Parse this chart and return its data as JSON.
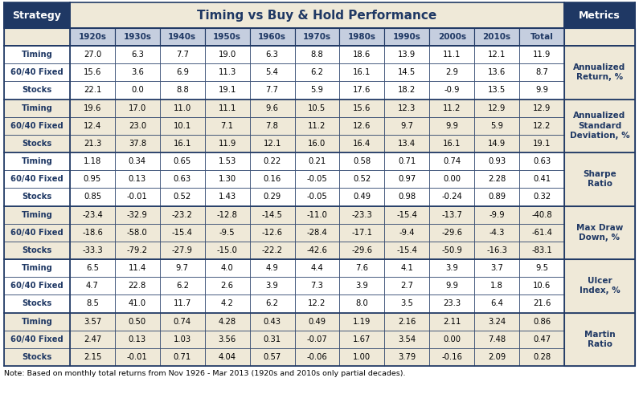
{
  "title": "Timing vs Buy & Hold Performance",
  "col_headers": [
    "1920s",
    "1930s",
    "1940s",
    "1950s",
    "1960s",
    "1970s",
    "1980s",
    "1990s",
    "2000s",
    "2010s",
    "Total"
  ],
  "row_groups": [
    {
      "metric": "Annualized\nReturn, %",
      "rows": [
        {
          "strategy": "Timing",
          "values": [
            "27.0",
            "6.3",
            "7.7",
            "19.0",
            "6.3",
            "8.8",
            "18.6",
            "13.9",
            "11.1",
            "12.1",
            "11.9"
          ]
        },
        {
          "strategy": "60/40 Fixed",
          "values": [
            "15.6",
            "3.6",
            "6.9",
            "11.3",
            "5.4",
            "6.2",
            "16.1",
            "14.5",
            "2.9",
            "13.6",
            "8.7"
          ]
        },
        {
          "strategy": "Stocks",
          "values": [
            "22.1",
            "0.0",
            "8.8",
            "19.1",
            "7.7",
            "5.9",
            "17.6",
            "18.2",
            "-0.9",
            "13.5",
            "9.9"
          ]
        }
      ]
    },
    {
      "metric": "Annualized\nStandard\nDeviation, %",
      "rows": [
        {
          "strategy": "Timing",
          "values": [
            "19.6",
            "17.0",
            "11.0",
            "11.1",
            "9.6",
            "10.5",
            "15.6",
            "12.3",
            "11.2",
            "12.9",
            "12.9"
          ]
        },
        {
          "strategy": "60/40 Fixed",
          "values": [
            "12.4",
            "23.0",
            "10.1",
            "7.1",
            "7.8",
            "11.2",
            "12.6",
            "9.7",
            "9.9",
            "5.9",
            "12.2"
          ]
        },
        {
          "strategy": "Stocks",
          "values": [
            "21.3",
            "37.8",
            "16.1",
            "11.9",
            "12.1",
            "16.0",
            "16.4",
            "13.4",
            "16.1",
            "14.9",
            "19.1"
          ]
        }
      ]
    },
    {
      "metric": "Sharpe\nRatio",
      "rows": [
        {
          "strategy": "Timing",
          "values": [
            "1.18",
            "0.34",
            "0.65",
            "1.53",
            "0.22",
            "0.21",
            "0.58",
            "0.71",
            "0.74",
            "0.93",
            "0.63"
          ]
        },
        {
          "strategy": "60/40 Fixed",
          "values": [
            "0.95",
            "0.13",
            "0.63",
            "1.30",
            "0.16",
            "-0.05",
            "0.52",
            "0.97",
            "0.00",
            "2.28",
            "0.41"
          ]
        },
        {
          "strategy": "Stocks",
          "values": [
            "0.85",
            "-0.01",
            "0.52",
            "1.43",
            "0.29",
            "-0.05",
            "0.49",
            "0.98",
            "-0.24",
            "0.89",
            "0.32"
          ]
        }
      ]
    },
    {
      "metric": "Max Draw\nDown, %",
      "rows": [
        {
          "strategy": "Timing",
          "values": [
            "-23.4",
            "-32.9",
            "-23.2",
            "-12.8",
            "-14.5",
            "-11.0",
            "-23.3",
            "-15.4",
            "-13.7",
            "-9.9",
            "-40.8"
          ]
        },
        {
          "strategy": "60/40 Fixed",
          "values": [
            "-18.6",
            "-58.0",
            "-15.4",
            "-9.5",
            "-12.6",
            "-28.4",
            "-17.1",
            "-9.4",
            "-29.6",
            "-4.3",
            "-61.4"
          ]
        },
        {
          "strategy": "Stocks",
          "values": [
            "-33.3",
            "-79.2",
            "-27.9",
            "-15.0",
            "-22.2",
            "-42.6",
            "-29.6",
            "-15.4",
            "-50.9",
            "-16.3",
            "-83.1"
          ]
        }
      ]
    },
    {
      "metric": "Ulcer\nIndex, %",
      "rows": [
        {
          "strategy": "Timing",
          "values": [
            "6.5",
            "11.4",
            "9.7",
            "4.0",
            "4.9",
            "4.4",
            "7.6",
            "4.1",
            "3.9",
            "3.7",
            "9.5"
          ]
        },
        {
          "strategy": "60/40 Fixed",
          "values": [
            "4.7",
            "22.8",
            "6.2",
            "2.6",
            "3.9",
            "7.3",
            "3.9",
            "2.7",
            "9.9",
            "1.8",
            "10.6"
          ]
        },
        {
          "strategy": "Stocks",
          "values": [
            "8.5",
            "41.0",
            "11.7",
            "4.2",
            "6.2",
            "12.2",
            "8.0",
            "3.5",
            "23.3",
            "6.4",
            "21.6"
          ]
        }
      ]
    },
    {
      "metric": "Martin\nRatio",
      "rows": [
        {
          "strategy": "Timing",
          "values": [
            "3.57",
            "0.50",
            "0.74",
            "4.28",
            "0.43",
            "0.49",
            "1.19",
            "2.16",
            "2.11",
            "3.24",
            "0.86"
          ]
        },
        {
          "strategy": "60/40 Fixed",
          "values": [
            "2.47",
            "0.13",
            "1.03",
            "3.56",
            "0.31",
            "-0.07",
            "1.67",
            "3.54",
            "0.00",
            "7.48",
            "0.47"
          ]
        },
        {
          "strategy": "Stocks",
          "values": [
            "2.15",
            "-0.01",
            "0.71",
            "4.04",
            "0.57",
            "-0.06",
            "1.00",
            "3.79",
            "-0.16",
            "2.09",
            "0.28"
          ]
        }
      ]
    }
  ],
  "note": "Note: Based on monthly total returns from Nov 1926 - Mar 2013 (1920s and 2010s only partial decades).",
  "colors": {
    "header_dark": "#1F3864",
    "title_center_bg": "#EFE9D8",
    "col_header_bg": "#C5CEDF",
    "row_white_bg": "#FFFFFF",
    "row_tan_bg": "#EFE9D8",
    "metrics_bg": "#EFE9D8",
    "border_dark": "#1F3864",
    "border_light": "#9AA8C0",
    "text_header": "#FFFFFF",
    "text_dark_blue": "#1F3864",
    "text_black": "#000000",
    "strategy_col_bg_white": "#FFFFFF",
    "strategy_col_bg_tan": "#EFE9D8"
  },
  "figsize": [
    7.95,
    4.91
  ],
  "dpi": 100
}
